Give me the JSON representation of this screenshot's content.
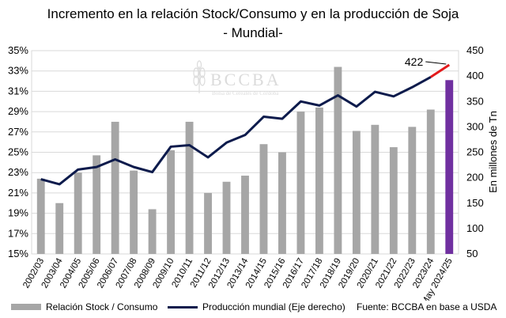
{
  "title_line1": "Incremento en la relación Stock/Consumo y en la producción de Soja",
  "title_line2": "- Mundial-",
  "watermark": {
    "logo_text": "BCCBA",
    "subtitle": "Bolsa de Cereales de Córdoba"
  },
  "legend": {
    "bar_label": "Relación Stock / Consumo",
    "line_label": "Producción mundial (Eje derecho)",
    "source": "Fuente: BCCBA en base a USDA"
  },
  "colors": {
    "bar": "#a6a6a6",
    "bar_highlight": "#7030a0",
    "line": "#0d1b4c",
    "line_projection": "#e31a1c"
  },
  "chart_data": {
    "type": "bar+line",
    "categories": [
      "2002/03",
      "2003/04",
      "2004/05",
      "2005/06",
      "2006/07",
      "2007/08",
      "2008/09",
      "2009/10",
      "2010/11",
      "2011/12",
      "2012/13",
      "2013/14",
      "2014/15",
      "2015/16",
      "2016/17",
      "2017/18",
      "2018/19",
      "2019/20",
      "2020/21",
      "2021/22",
      "2022/23",
      "2023/24",
      "May 2024/25"
    ],
    "series": [
      {
        "name": "Relación Stock / Consumo",
        "axis": "left",
        "type": "bar",
        "values": [
          22.4,
          20.0,
          23.0,
          24.7,
          28.0,
          23.2,
          19.4,
          25.2,
          28.0,
          21.0,
          22.1,
          22.7,
          25.8,
          25.0,
          29.0,
          29.4,
          33.4,
          27.1,
          27.7,
          25.5,
          27.5,
          29.2,
          32.1
        ],
        "highlight_last": true
      },
      {
        "name": "Producción mundial (Eje derecho)",
        "axis": "right",
        "type": "line",
        "values": [
          197,
          187,
          216,
          221,
          236,
          221,
          211,
          261,
          264,
          240,
          269,
          284,
          320,
          316,
          350,
          342,
          362,
          340,
          369,
          360,
          378,
          398,
          422
        ],
        "projection_from_index": 21
      }
    ],
    "annotation": {
      "label": "422",
      "index": 22
    },
    "left_axis": {
      "min": 15,
      "max": 35,
      "step": 2,
      "suffix": "%"
    },
    "right_axis": {
      "min": 50,
      "max": 450,
      "step": 50,
      "label": "En millones de Tn"
    },
    "grid": true
  }
}
